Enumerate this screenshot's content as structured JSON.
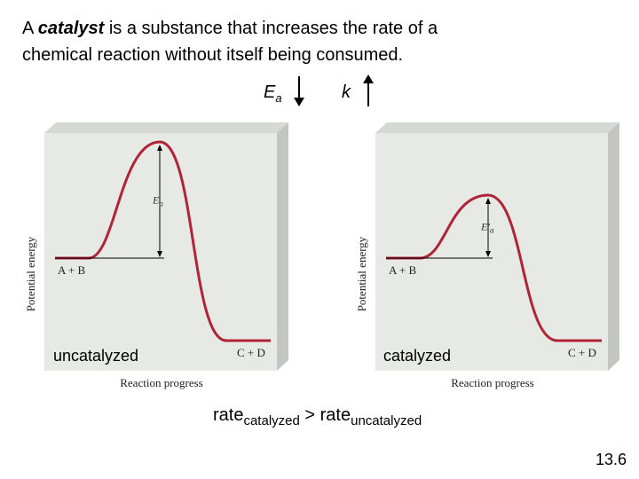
{
  "title": {
    "before": "A ",
    "emphasis": "catalyst",
    "line1_rest": " is a substance that increases the rate of a",
    "line2": "chemical reaction without itself being consumed."
  },
  "effects": [
    {
      "symbol": "E",
      "subscript": "a"
    },
    {
      "symbol": "k"
    }
  ],
  "panels": [
    {
      "ylabel": "Potential energy",
      "xlabel": "Reaction progress",
      "reactant": "A + B",
      "product": "C + D",
      "barrier_symbol": "E",
      "barrier_subscript": "a",
      "caption": "uncatalyzed"
    },
    {
      "ylabel": "Potential energy",
      "xlabel": "Reaction progress",
      "reactant": "A + B",
      "product": "C + D",
      "barrier_symbol": "E′",
      "barrier_subscript": "a",
      "caption": "catalyzed"
    }
  ],
  "comparison": {
    "left": "rate",
    "left_sub": "catalyzed",
    "middle": " > rate",
    "right_sub": "uncatalyzed"
  },
  "slide_number": "13.6"
}
